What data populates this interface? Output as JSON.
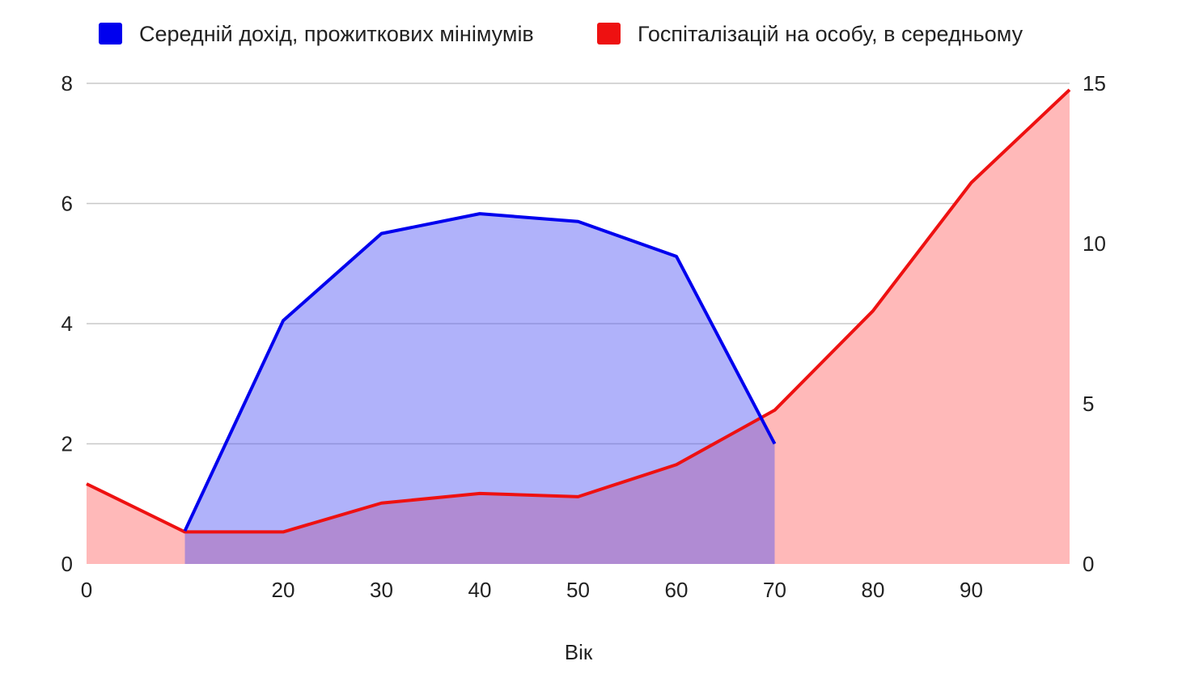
{
  "chart_data": {
    "type": "area",
    "xlabel": "Вік",
    "x_ticks": [
      0,
      20,
      30,
      40,
      50,
      60,
      70,
      80,
      90
    ],
    "xlim": [
      0,
      100
    ],
    "ylim_left": [
      0,
      8
    ],
    "y_ticks_left": [
      0,
      2,
      4,
      6,
      8
    ],
    "ylim_right": [
      0,
      15
    ],
    "y_ticks_right": [
      0,
      5,
      10,
      15
    ],
    "grid": true,
    "legend_position": "top",
    "series": [
      {
        "name": "Середній дохід, прожиткових мінімумів",
        "color": "#0000ee",
        "fill": "#b0b2fb",
        "axis": "left",
        "x": [
          10,
          20,
          30,
          40,
          50,
          60,
          70
        ],
        "values": [
          0.55,
          4.05,
          5.5,
          5.83,
          5.7,
          5.12,
          2.0
        ]
      },
      {
        "name": "Госпіталізацій на особу, в середньому",
        "color": "#ee1111",
        "fill": "#ffb9b9",
        "axis": "right",
        "x": [
          0,
          10,
          20,
          30,
          40,
          50,
          60,
          70,
          80,
          90,
          100
        ],
        "values": [
          2.5,
          1.0,
          1.0,
          1.9,
          2.2,
          2.1,
          3.1,
          4.8,
          7.9,
          11.9,
          14.8
        ]
      }
    ]
  }
}
